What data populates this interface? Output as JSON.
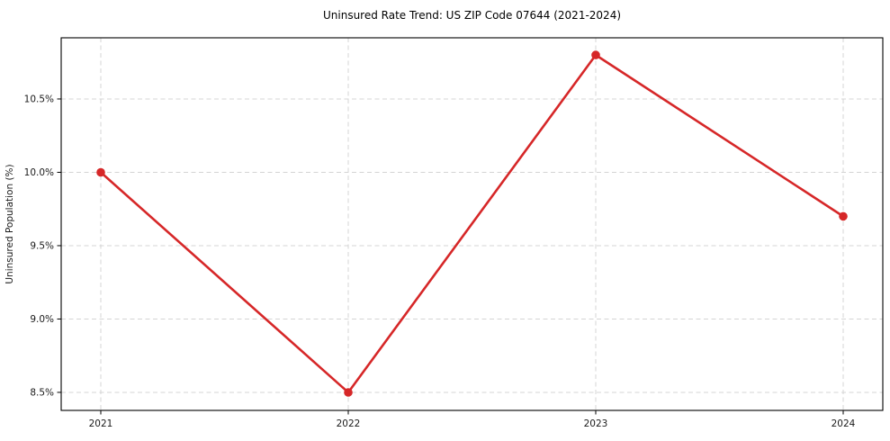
{
  "chart_data": {
    "type": "line",
    "title": "Uninsured Rate Trend: US ZIP Code 07644 (2021-2024)",
    "xlabel": "",
    "ylabel": "Uninsured Population (%)",
    "x": [
      2021,
      2022,
      2023,
      2024
    ],
    "x_tick_labels": [
      "2021",
      "2022",
      "2023",
      "2024"
    ],
    "series": [
      {
        "values": [
          10.0,
          8.5,
          10.8,
          9.7
        ]
      }
    ],
    "y_ticks": [
      8.5,
      9.0,
      9.5,
      10.0,
      10.5
    ],
    "y_tick_labels": [
      "8.5%",
      "9.0%",
      "9.5%",
      "10.0%",
      "10.5%"
    ],
    "xlim": [
      2020.84,
      2024.16
    ],
    "ylim": [
      8.377,
      10.917
    ],
    "grid": true,
    "legend": false,
    "colors": {
      "line": "#d62728",
      "grid": "#d4d4d4",
      "spine": "#000000",
      "text": "#1a1a1a",
      "background": "#ffffff"
    }
  }
}
